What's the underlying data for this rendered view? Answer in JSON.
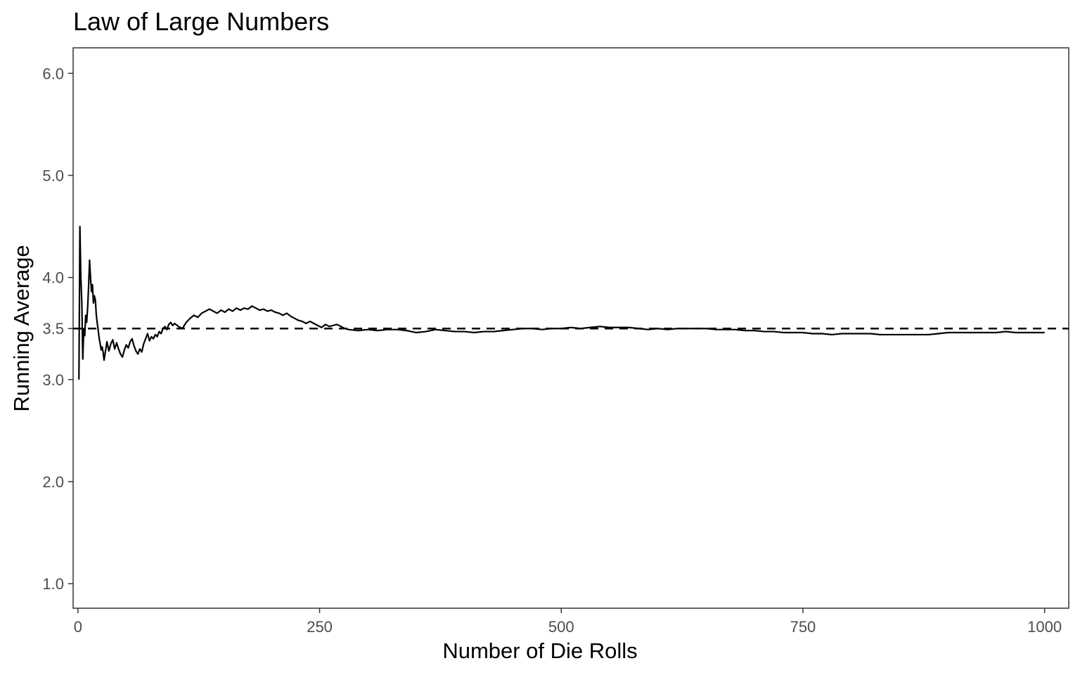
{
  "chart_data": {
    "type": "line",
    "title": "Law of Large Numbers",
    "xlabel": "Number of Die Rolls",
    "ylabel": "Running Average",
    "xlim": [
      -5,
      1025
    ],
    "ylim": [
      0.76,
      6.25
    ],
    "x_ticks": [
      0,
      250,
      500,
      750,
      1000
    ],
    "x_tick_labels": [
      "0",
      "250",
      "500",
      "750",
      "1000"
    ],
    "y_ticks": [
      1.0,
      2.0,
      3.0,
      3.5,
      4.0,
      5.0,
      6.0
    ],
    "y_tick_labels": [
      "1.0",
      "2.0",
      "3.0",
      "3.5",
      "4.0",
      "5.0",
      "6.0"
    ],
    "grid": false,
    "reference_line": {
      "y": 3.5,
      "style": "dashed",
      "color": "#000000"
    },
    "series": [
      {
        "color": "#000000",
        "points": [
          [
            1,
            3.0
          ],
          [
            2,
            4.5
          ],
          [
            3,
            4.0
          ],
          [
            4,
            3.75
          ],
          [
            5,
            3.2
          ],
          [
            6,
            3.5
          ],
          [
            7,
            3.43
          ],
          [
            8,
            3.63
          ],
          [
            9,
            3.56
          ],
          [
            10,
            3.7
          ],
          [
            11,
            3.91
          ],
          [
            12,
            4.17
          ],
          [
            13,
            4.0
          ],
          [
            14,
            3.86
          ],
          [
            15,
            3.93
          ],
          [
            16,
            3.75
          ],
          [
            17,
            3.82
          ],
          [
            18,
            3.78
          ],
          [
            19,
            3.63
          ],
          [
            20,
            3.55
          ],
          [
            21,
            3.48
          ],
          [
            22,
            3.4
          ],
          [
            23,
            3.35
          ],
          [
            24,
            3.29
          ],
          [
            25,
            3.32
          ],
          [
            26,
            3.27
          ],
          [
            27,
            3.19
          ],
          [
            28,
            3.25
          ],
          [
            29,
            3.31
          ],
          [
            30,
            3.37
          ],
          [
            32,
            3.28
          ],
          [
            34,
            3.35
          ],
          [
            36,
            3.39
          ],
          [
            38,
            3.3
          ],
          [
            40,
            3.36
          ],
          [
            42,
            3.3
          ],
          [
            44,
            3.25
          ],
          [
            46,
            3.22
          ],
          [
            48,
            3.29
          ],
          [
            50,
            3.34
          ],
          [
            52,
            3.31
          ],
          [
            54,
            3.37
          ],
          [
            56,
            3.4
          ],
          [
            58,
            3.33
          ],
          [
            60,
            3.28
          ],
          [
            62,
            3.25
          ],
          [
            64,
            3.3
          ],
          [
            66,
            3.27
          ],
          [
            68,
            3.35
          ],
          [
            70,
            3.4
          ],
          [
            72,
            3.45
          ],
          [
            74,
            3.38
          ],
          [
            76,
            3.42
          ],
          [
            78,
            3.4
          ],
          [
            80,
            3.44
          ],
          [
            82,
            3.42
          ],
          [
            84,
            3.47
          ],
          [
            86,
            3.45
          ],
          [
            88,
            3.5
          ],
          [
            90,
            3.52
          ],
          [
            92,
            3.49
          ],
          [
            94,
            3.54
          ],
          [
            96,
            3.56
          ],
          [
            98,
            3.53
          ],
          [
            100,
            3.55
          ],
          [
            104,
            3.52
          ],
          [
            108,
            3.5
          ],
          [
            112,
            3.56
          ],
          [
            116,
            3.6
          ],
          [
            120,
            3.63
          ],
          [
            124,
            3.61
          ],
          [
            128,
            3.65
          ],
          [
            132,
            3.67
          ],
          [
            136,
            3.69
          ],
          [
            140,
            3.67
          ],
          [
            144,
            3.65
          ],
          [
            148,
            3.68
          ],
          [
            152,
            3.66
          ],
          [
            156,
            3.69
          ],
          [
            160,
            3.67
          ],
          [
            164,
            3.7
          ],
          [
            168,
            3.68
          ],
          [
            172,
            3.7
          ],
          [
            176,
            3.69
          ],
          [
            180,
            3.72
          ],
          [
            184,
            3.7
          ],
          [
            188,
            3.68
          ],
          [
            192,
            3.69
          ],
          [
            196,
            3.67
          ],
          [
            200,
            3.68
          ],
          [
            204,
            3.66
          ],
          [
            208,
            3.65
          ],
          [
            212,
            3.63
          ],
          [
            216,
            3.65
          ],
          [
            220,
            3.62
          ],
          [
            224,
            3.6
          ],
          [
            228,
            3.58
          ],
          [
            232,
            3.57
          ],
          [
            236,
            3.55
          ],
          [
            240,
            3.57
          ],
          [
            244,
            3.55
          ],
          [
            248,
            3.53
          ],
          [
            252,
            3.51
          ],
          [
            256,
            3.54
          ],
          [
            260,
            3.52
          ],
          [
            264,
            3.53
          ],
          [
            268,
            3.54
          ],
          [
            272,
            3.52
          ],
          [
            276,
            3.5
          ],
          [
            280,
            3.49
          ],
          [
            290,
            3.48
          ],
          [
            300,
            3.49
          ],
          [
            310,
            3.48
          ],
          [
            320,
            3.49
          ],
          [
            330,
            3.49
          ],
          [
            340,
            3.48
          ],
          [
            350,
            3.46
          ],
          [
            360,
            3.47
          ],
          [
            370,
            3.49
          ],
          [
            380,
            3.48
          ],
          [
            390,
            3.47
          ],
          [
            400,
            3.47
          ],
          [
            410,
            3.46
          ],
          [
            420,
            3.47
          ],
          [
            430,
            3.47
          ],
          [
            440,
            3.48
          ],
          [
            450,
            3.49
          ],
          [
            460,
            3.5
          ],
          [
            470,
            3.5
          ],
          [
            480,
            3.49
          ],
          [
            490,
            3.5
          ],
          [
            500,
            3.5
          ],
          [
            510,
            3.51
          ],
          [
            520,
            3.5
          ],
          [
            530,
            3.51
          ],
          [
            540,
            3.52
          ],
          [
            550,
            3.51
          ],
          [
            560,
            3.51
          ],
          [
            570,
            3.51
          ],
          [
            580,
            3.5
          ],
          [
            590,
            3.49
          ],
          [
            600,
            3.5
          ],
          [
            610,
            3.49
          ],
          [
            620,
            3.5
          ],
          [
            630,
            3.5
          ],
          [
            640,
            3.5
          ],
          [
            650,
            3.5
          ],
          [
            660,
            3.49
          ],
          [
            670,
            3.49
          ],
          [
            680,
            3.49
          ],
          [
            690,
            3.48
          ],
          [
            700,
            3.48
          ],
          [
            710,
            3.47
          ],
          [
            720,
            3.47
          ],
          [
            730,
            3.46
          ],
          [
            740,
            3.46
          ],
          [
            750,
            3.46
          ],
          [
            760,
            3.45
          ],
          [
            770,
            3.45
          ],
          [
            780,
            3.44
          ],
          [
            790,
            3.45
          ],
          [
            800,
            3.45
          ],
          [
            810,
            3.45
          ],
          [
            820,
            3.45
          ],
          [
            830,
            3.44
          ],
          [
            840,
            3.44
          ],
          [
            850,
            3.44
          ],
          [
            860,
            3.44
          ],
          [
            870,
            3.44
          ],
          [
            880,
            3.44
          ],
          [
            890,
            3.45
          ],
          [
            900,
            3.46
          ],
          [
            910,
            3.46
          ],
          [
            920,
            3.46
          ],
          [
            930,
            3.46
          ],
          [
            940,
            3.46
          ],
          [
            950,
            3.46
          ],
          [
            960,
            3.47
          ],
          [
            970,
            3.46
          ],
          [
            980,
            3.46
          ],
          [
            990,
            3.46
          ],
          [
            1000,
            3.46
          ]
        ]
      }
    ]
  }
}
